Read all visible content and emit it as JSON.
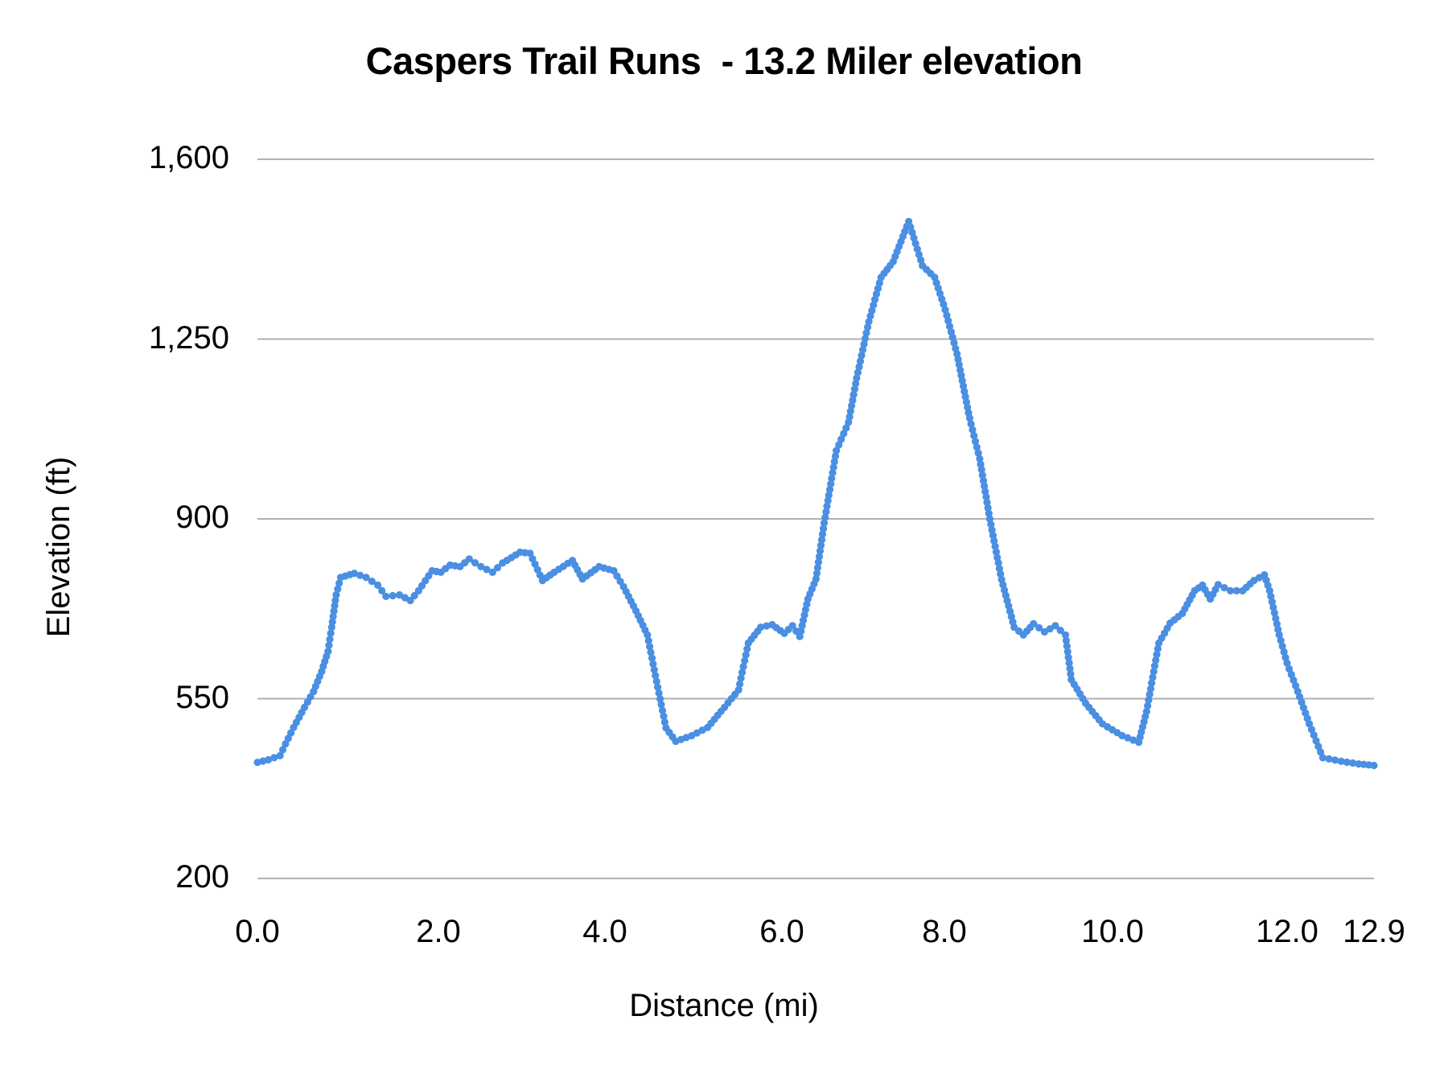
{
  "chart_data": {
    "type": "line",
    "title": "Caspers Trail Runs  - 13.2 Miler elevation",
    "xlabel": "Distance (mi)",
    "ylabel": "Elevation (ft)",
    "ylim": [
      200,
      1600
    ],
    "xlim": [
      0.0,
      12.9
    ],
    "grid": true,
    "legend": "none",
    "y_ticks": [
      {
        "value": 1600,
        "label": "1,600"
      },
      {
        "value": 1250,
        "label": "1,250"
      },
      {
        "value": 900,
        "label": "900"
      },
      {
        "value": 550,
        "label": "550"
      },
      {
        "value": 200,
        "label": "200"
      }
    ],
    "x_ticks": [
      {
        "value": 0.0,
        "label": "0.0",
        "pos": 320
      },
      {
        "value": 2.0,
        "label": "2.0",
        "pos": 545
      },
      {
        "value": 4.0,
        "label": "4.0",
        "pos": 752
      },
      {
        "value": 6.0,
        "label": "6.0",
        "pos": 972
      },
      {
        "value": 8.0,
        "label": "8.0",
        "pos": 1174
      },
      {
        "value": 10.0,
        "label": "10.0",
        "pos": 1383
      },
      {
        "value": 12.0,
        "label": "12.0",
        "pos": 1600
      },
      {
        "value": 12.9,
        "label": "12.9",
        "pos": 1708
      }
    ],
    "series": [
      {
        "name": "Elevation",
        "color": "#4a8fe2",
        "points": [
          [
            0.0,
            426
          ],
          [
            0.12,
            431
          ],
          [
            0.25,
            439
          ],
          [
            0.31,
            462
          ],
          [
            0.4,
            494
          ],
          [
            0.52,
            533
          ],
          [
            0.62,
            564
          ],
          [
            0.71,
            603
          ],
          [
            0.78,
            642
          ],
          [
            0.82,
            689
          ],
          [
            0.87,
            752
          ],
          [
            0.92,
            786
          ],
          [
            1.07,
            794
          ],
          [
            1.2,
            786
          ],
          [
            1.33,
            771
          ],
          [
            1.42,
            749
          ],
          [
            1.57,
            752
          ],
          [
            1.69,
            741
          ],
          [
            1.78,
            760
          ],
          [
            1.93,
            799
          ],
          [
            2.03,
            796
          ],
          [
            2.14,
            810
          ],
          [
            2.26,
            807
          ],
          [
            2.37,
            822
          ],
          [
            2.51,
            807
          ],
          [
            2.65,
            796
          ],
          [
            2.77,
            814
          ],
          [
            2.98,
            835
          ],
          [
            3.1,
            833
          ],
          [
            3.25,
            780
          ],
          [
            3.39,
            796
          ],
          [
            3.61,
            819
          ],
          [
            3.73,
            783
          ],
          [
            3.93,
            807
          ],
          [
            4.1,
            799
          ],
          [
            4.21,
            768
          ],
          [
            4.35,
            721
          ],
          [
            4.48,
            674
          ],
          [
            4.57,
            595
          ],
          [
            4.69,
            493
          ],
          [
            4.8,
            467
          ],
          [
            4.98,
            478
          ],
          [
            5.16,
            494
          ],
          [
            5.35,
            533
          ],
          [
            5.51,
            567
          ],
          [
            5.62,
            658
          ],
          [
            5.76,
            689
          ],
          [
            5.89,
            694
          ],
          [
            6.03,
            677
          ],
          [
            6.13,
            692
          ],
          [
            6.22,
            671
          ],
          [
            6.32,
            744
          ],
          [
            6.42,
            783
          ],
          [
            6.52,
            892
          ],
          [
            6.67,
            1033
          ],
          [
            6.82,
            1088
          ],
          [
            6.92,
            1174
          ],
          [
            7.07,
            1284
          ],
          [
            7.22,
            1370
          ],
          [
            7.37,
            1401
          ],
          [
            7.56,
            1479
          ],
          [
            7.73,
            1393
          ],
          [
            7.88,
            1370
          ],
          [
            8.01,
            1307
          ],
          [
            8.15,
            1221
          ],
          [
            8.3,
            1096
          ],
          [
            8.42,
            1017
          ],
          [
            8.54,
            900
          ],
          [
            8.68,
            782
          ],
          [
            8.83,
            689
          ],
          [
            8.94,
            674
          ],
          [
            9.06,
            696
          ],
          [
            9.19,
            680
          ],
          [
            9.32,
            692
          ],
          [
            9.44,
            674
          ],
          [
            9.51,
            587
          ],
          [
            9.68,
            541
          ],
          [
            9.88,
            501
          ],
          [
            10.11,
            478
          ],
          [
            10.3,
            465
          ],
          [
            10.39,
            525
          ],
          [
            10.53,
            658
          ],
          [
            10.66,
            697
          ],
          [
            10.8,
            716
          ],
          [
            10.94,
            760
          ],
          [
            11.03,
            771
          ],
          [
            11.12,
            744
          ],
          [
            11.21,
            772
          ],
          [
            11.35,
            760
          ],
          [
            11.49,
            760
          ],
          [
            11.62,
            780
          ],
          [
            11.74,
            791
          ],
          [
            11.8,
            760
          ],
          [
            11.91,
            674
          ],
          [
            12.0,
            619
          ],
          [
            12.11,
            564
          ],
          [
            12.23,
            501
          ],
          [
            12.37,
            435
          ],
          [
            12.56,
            428
          ],
          [
            12.74,
            423
          ],
          [
            12.9,
            420
          ]
        ]
      }
    ]
  },
  "style": {
    "gridline_color": "#b0b0b0",
    "line_color": "#4a8fe2"
  }
}
